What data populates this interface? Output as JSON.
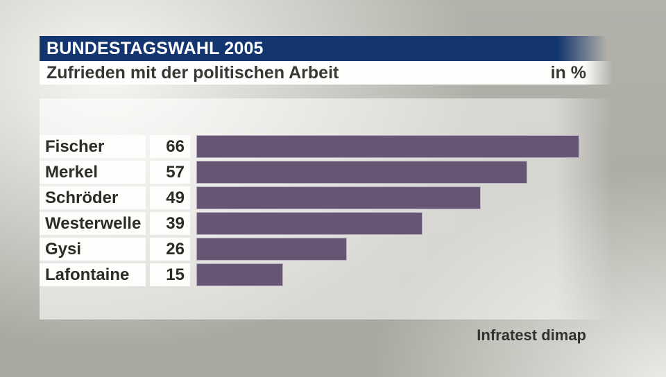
{
  "header": {
    "title": "BUNDESTAGSWAHL 2005",
    "subtitle": "Zufrieden mit der politischen Arbeit",
    "unit_label": "in %"
  },
  "source": "Infratest dimap",
  "chart_data": {
    "type": "bar",
    "orientation": "horizontal",
    "title": "Zufrieden mit der politischen Arbeit",
    "unit": "%",
    "categories": [
      "Fischer",
      "Merkel",
      "Schröder",
      "Westerwelle",
      "Gysi",
      "Lafontaine"
    ],
    "values": [
      66,
      57,
      49,
      39,
      26,
      15
    ],
    "xlim": [
      0,
      72
    ],
    "grid": false,
    "legend": false,
    "value_labels_position": "left-of-bar",
    "bar_color": "#665673",
    "source": "Infratest dimap"
  },
  "colors": {
    "header_blue": "#143670",
    "bar_fill": "#665673",
    "bar_border": "#b5adc0",
    "text_dark": "#3a3835"
  }
}
